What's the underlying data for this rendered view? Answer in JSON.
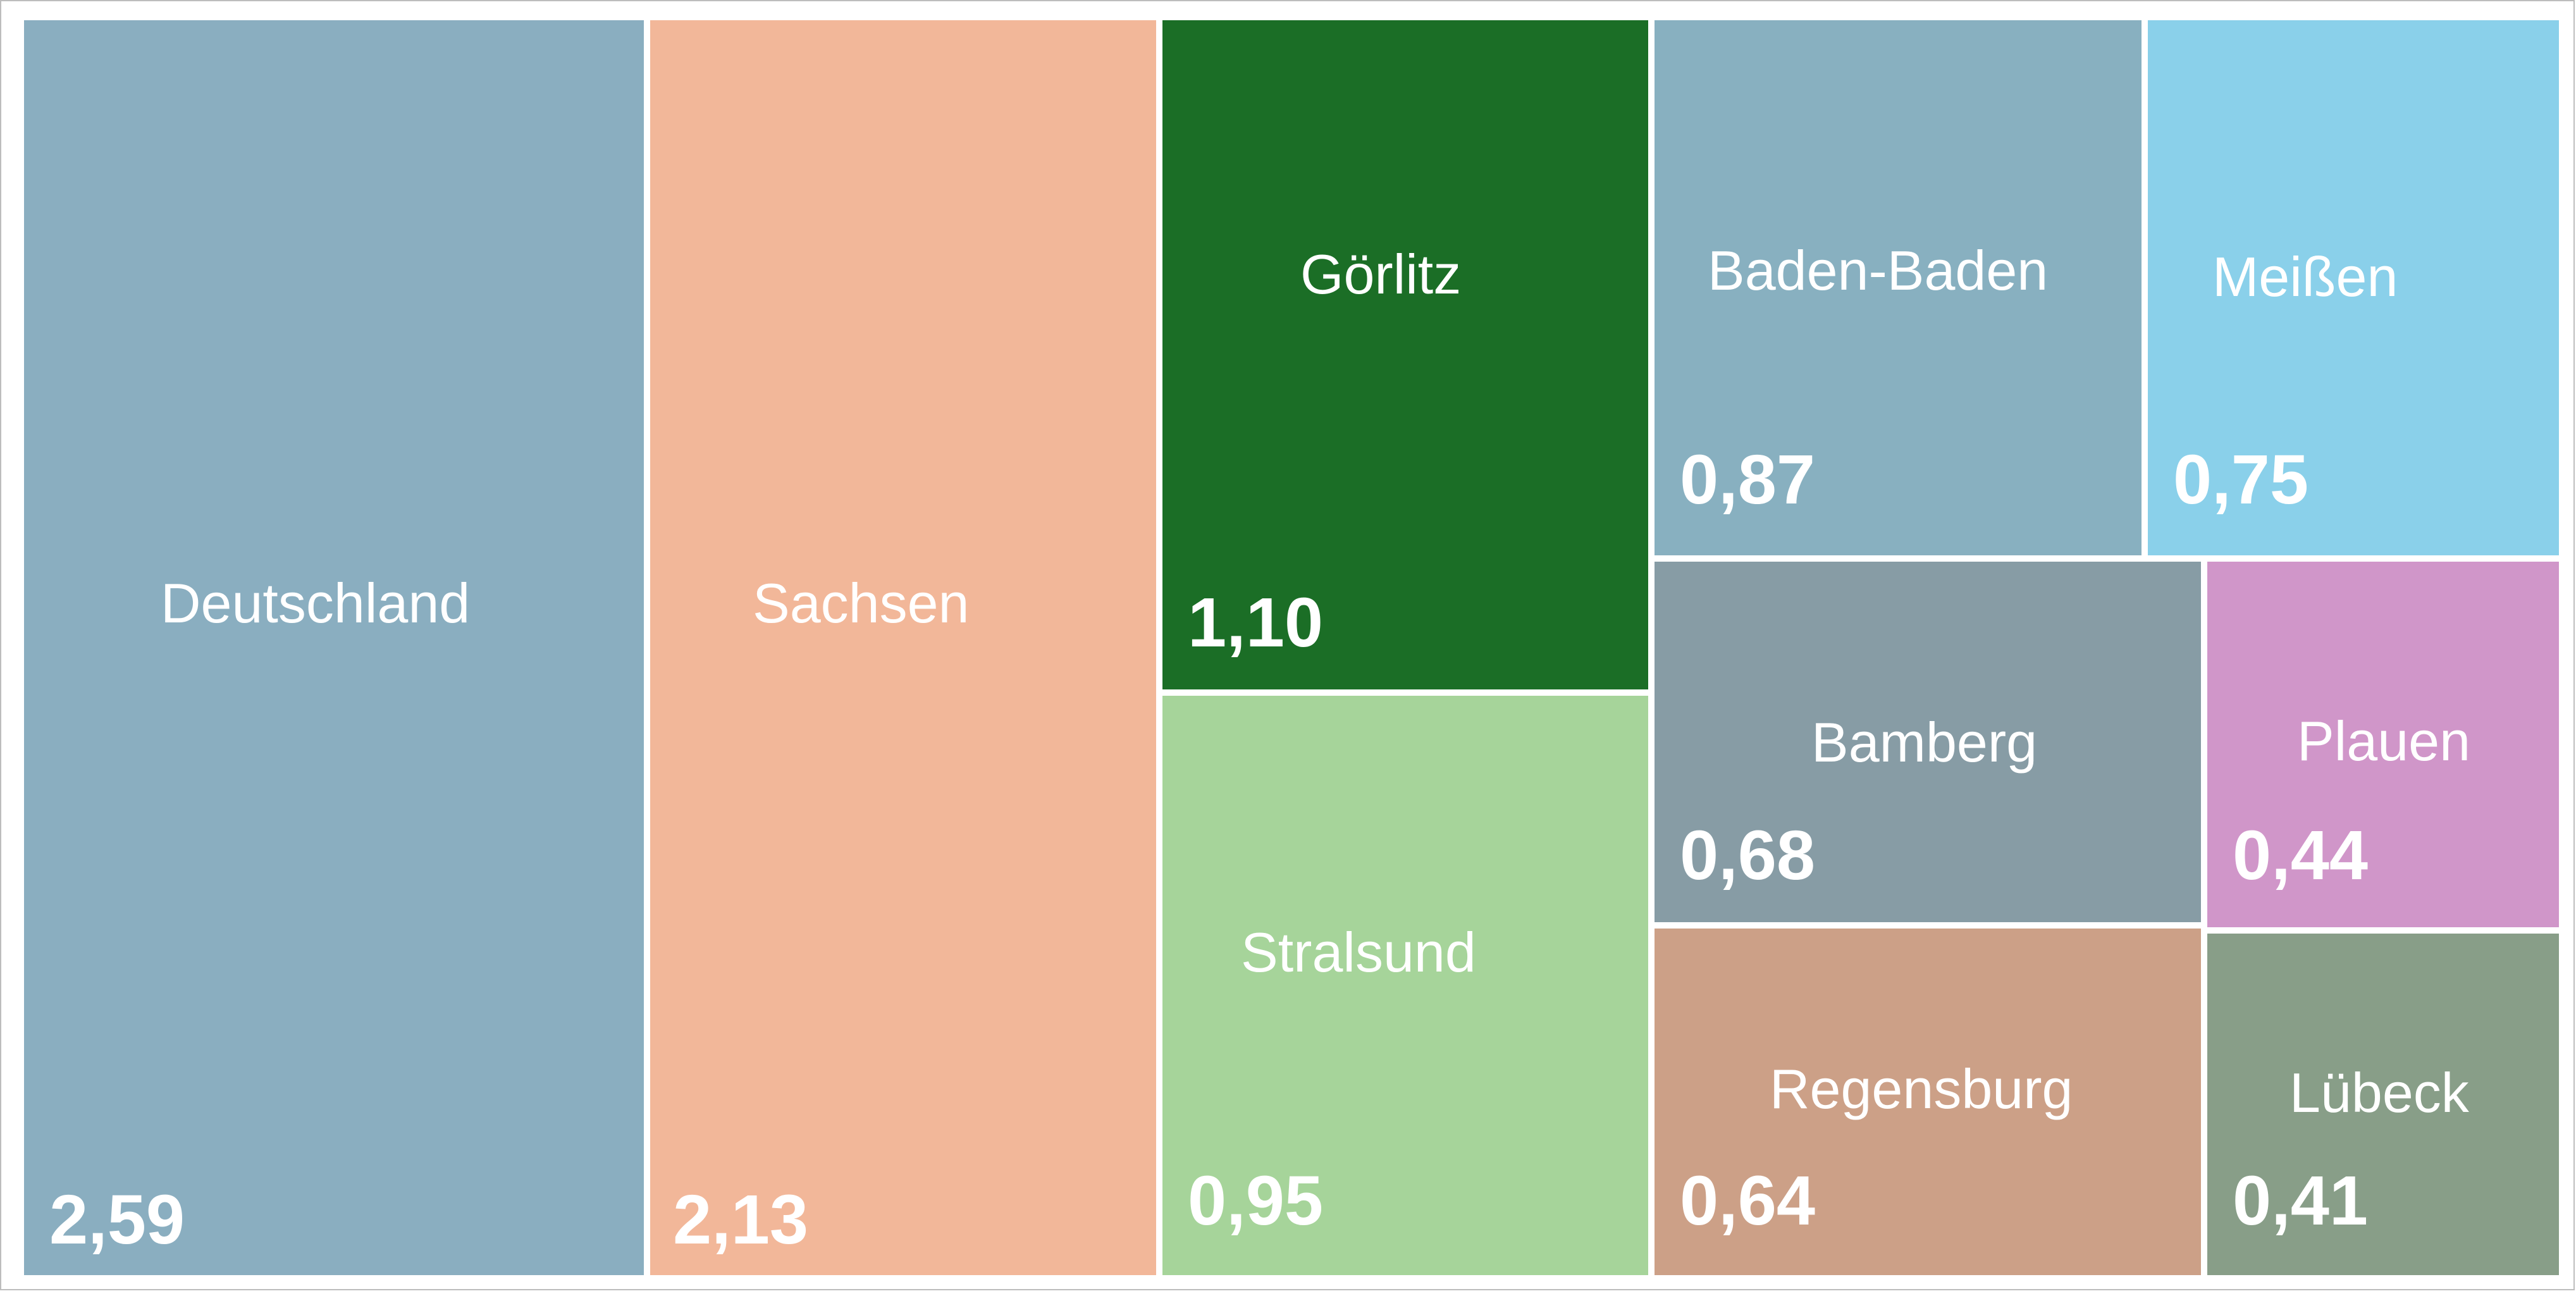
{
  "chart_data": {
    "type": "treemap",
    "items": [
      {
        "label": "Deutschland",
        "value": 2.59,
        "value_text": "2,59",
        "color": "#8aaec0"
      },
      {
        "label": "Sachsen",
        "value": 2.13,
        "value_text": "2,13",
        "color": "#f2b799"
      },
      {
        "label": "Görlitz",
        "value": 1.1,
        "value_text": "1,10",
        "color": "#1b6e26"
      },
      {
        "label": "Stralsund",
        "value": 0.95,
        "value_text": "0,95",
        "color": "#a6d49a"
      },
      {
        "label": "Baden-Baden",
        "value": 0.87,
        "value_text": "0,87",
        "color": "#88b0c0"
      },
      {
        "label": "Meißen",
        "value": 0.75,
        "value_text": "0,75",
        "color": "#8ad0ea"
      },
      {
        "label": "Bamberg",
        "value": 0.68,
        "value_text": "0,68",
        "color": "#879ca5"
      },
      {
        "label": "Plauen",
        "value": 0.44,
        "value_text": "0,44",
        "color": "#d096c9"
      },
      {
        "label": "Regensburg",
        "value": 0.64,
        "value_text": "0,64",
        "color": "#cca087"
      },
      {
        "label": "Lübeck",
        "value": 0.41,
        "value_text": "0,41",
        "color": "#889e88"
      }
    ]
  }
}
